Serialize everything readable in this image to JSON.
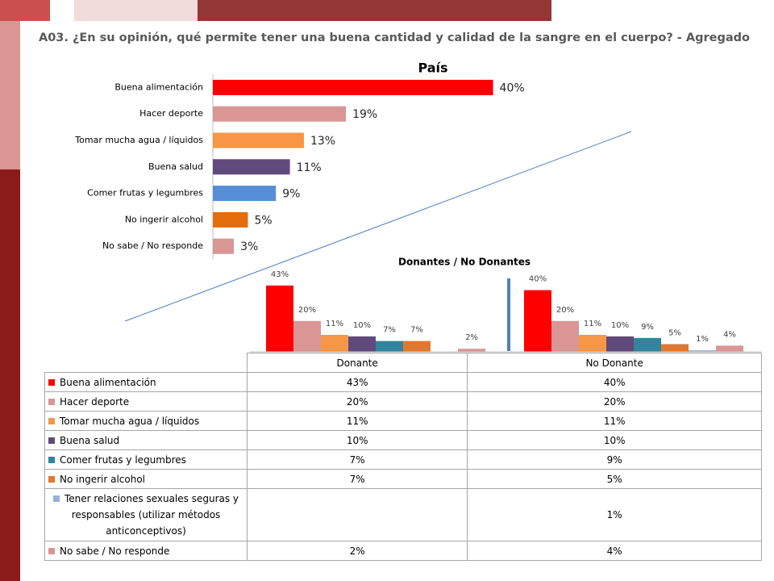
{
  "header": {
    "title": "A03. ¿En su opinión, qué permite tener una buena cantidad y calidad de la sangre en el cuerpo? - Agregado"
  },
  "chart_data": [
    {
      "type": "bar",
      "horizontal": true,
      "title": "País",
      "categories": [
        "Buena alimentación",
        "Hacer deporte",
        "Tomar mucha agua / líquidos",
        "Buena salud",
        "Comer frutas y legumbres",
        "No ingerir alcohol",
        "No sabe / No responde"
      ],
      "values": [
        40,
        19,
        13,
        11,
        9,
        5,
        3
      ],
      "value_labels": [
        "40%",
        "19%",
        "13%",
        "11%",
        "9%",
        "5%",
        "3%"
      ],
      "colors": [
        "#ff0000",
        "#d99694",
        "#f79646",
        "#604a7b",
        "#558ed5",
        "#e46c0a",
        "#d99694"
      ],
      "xlim": [
        0,
        45
      ]
    },
    {
      "type": "bar",
      "title": "Donantes / No Donantes",
      "categories": [
        "Donante",
        "No Donante"
      ],
      "series": [
        {
          "name": "Buena alimentación",
          "color": "#ff0000",
          "values": [
            43,
            40
          ],
          "value_labels": [
            "43%",
            "40%"
          ]
        },
        {
          "name": "Hacer deporte",
          "color": "#d99694",
          "values": [
            20,
            20
          ],
          "value_labels": [
            "20%",
            "20%"
          ]
        },
        {
          "name": "Tomar mucha agua / líquidos",
          "color": "#f79646",
          "values": [
            11,
            11
          ],
          "value_labels": [
            "11%",
            "11%"
          ]
        },
        {
          "name": "Buena salud",
          "color": "#604a7b",
          "values": [
            10,
            10
          ],
          "value_labels": [
            "10%",
            "10%"
          ]
        },
        {
          "name": "Comer frutas y legumbres",
          "color": "#31849b",
          "values": [
            7,
            9
          ],
          "value_labels": [
            "7%",
            "9%"
          ]
        },
        {
          "name": "No ingerir alcohol",
          "color": "#e0782f",
          "values": [
            7,
            5
          ],
          "value_labels": [
            "7%",
            "5%"
          ]
        },
        {
          "name": "Tener relaciones sexuales seguras y responsables (utilizar métodos anticonceptivos)",
          "color": "#95b3d7",
          "values": [
            null,
            1
          ],
          "value_labels": [
            null,
            "1%"
          ]
        },
        {
          "name": "No sabe / No responde",
          "color": "#d99694",
          "values": [
            2,
            4
          ],
          "value_labels": [
            "2%",
            "4%"
          ]
        }
      ],
      "ylim": [
        0,
        45
      ]
    }
  ]
}
